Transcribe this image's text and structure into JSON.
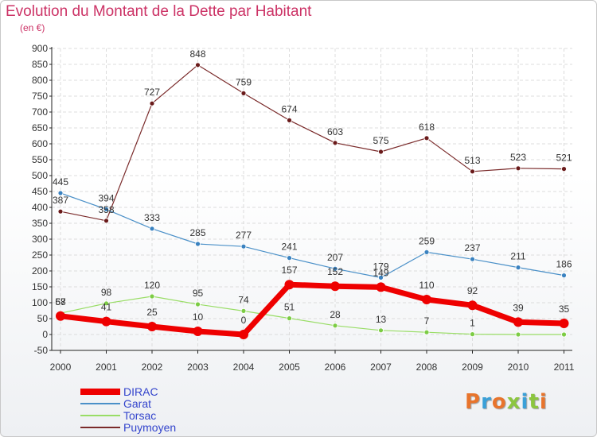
{
  "header": {
    "title": "Evolution du Montant de la Dette par Habitant",
    "subtitle": "(en €)"
  },
  "logo": {
    "text": "Proxiti",
    "colors": [
      "#e8742c",
      "#3aa0d8",
      "#e8742c",
      "#8cc63f",
      "#3aa0d8",
      "#8cc63f",
      "#e8742c"
    ]
  },
  "chart_data": {
    "type": "line",
    "x": [
      "2000",
      "2001",
      "2002",
      "2003",
      "2004",
      "2005",
      "2006",
      "2007",
      "2008",
      "2009",
      "2010",
      "2011"
    ],
    "yticks": [
      -50,
      0,
      50,
      100,
      150,
      200,
      250,
      300,
      350,
      400,
      450,
      500,
      550,
      600,
      650,
      700,
      750,
      800,
      850,
      900
    ],
    "ylim": [
      -50,
      900
    ],
    "grid": true,
    "legend": "bottom-left",
    "series": [
      {
        "name": "Puymoyen",
        "color": "#7a2a2a",
        "point_color": "#6a1a1a",
        "width": 1.2,
        "values": [
          387,
          358,
          727,
          848,
          759,
          674,
          603,
          575,
          618,
          513,
          523,
          521
        ],
        "labels": [
          "387",
          "358",
          "727",
          "848",
          "759",
          "674",
          "603",
          "575",
          "618",
          "513",
          "523",
          "521"
        ]
      },
      {
        "name": "Garat",
        "color": "#4a90c8",
        "point_color": "#3a82c0",
        "width": 1.2,
        "values": [
          445,
          394,
          333,
          285,
          277,
          241,
          207,
          179,
          259,
          237,
          211,
          186
        ],
        "labels": [
          "445",
          "394",
          "333",
          "285",
          "277",
          "241",
          "207",
          "179",
          "259",
          "237",
          "211",
          "186"
        ]
      },
      {
        "name": "Torsac",
        "color": "#99dd66",
        "point_color": "#7ccc44",
        "width": 1.2,
        "values": [
          67,
          98,
          120,
          95,
          74,
          51,
          28,
          13,
          7,
          1,
          0,
          0
        ],
        "labels": [
          "67",
          "98",
          "120",
          "95",
          "74",
          "51",
          "28",
          "13",
          "7",
          "1",
          "",
          ""
        ]
      },
      {
        "name": "DIRAC",
        "color": "#ee0000",
        "point_color": "#ee0000",
        "width": 7,
        "values": [
          58,
          41,
          25,
          10,
          0,
          157,
          152,
          149,
          110,
          92,
          39,
          35
        ],
        "labels": [
          "58",
          "41",
          "25",
          "10",
          "0",
          "157",
          "152",
          "149",
          "110",
          "92",
          "39",
          "35"
        ]
      }
    ],
    "legend_order": [
      "DIRAC",
      "Garat",
      "Torsac",
      "Puymoyen"
    ]
  }
}
